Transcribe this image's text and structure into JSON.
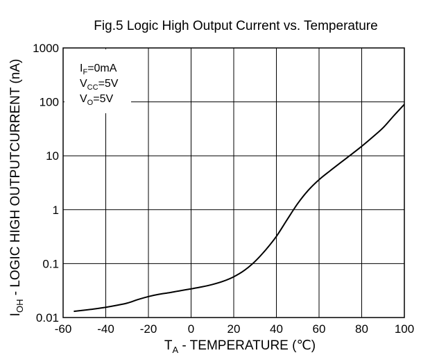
{
  "chart_data": {
    "type": "line",
    "title": "Fig.5 Logic High Output Current vs. Temperature",
    "xlabel": {
      "main": "T",
      "sub": "A",
      "rest": " - TEMPERATURE (℃)"
    },
    "ylabel": {
      "main": "I",
      "sub": "OH",
      "rest": " - LOGIC HIGH OUTPUTCURRENT (nA)"
    },
    "xlim": [
      -60,
      100
    ],
    "ylim": [
      0.01,
      1000
    ],
    "yscale": "log",
    "grid": true,
    "x_ticks": [
      "-60",
      "-40",
      "-20",
      "0",
      "20",
      "40",
      "60",
      "80",
      "100"
    ],
    "y_ticks": [
      "0.01",
      "0.1",
      "1",
      "10",
      "100",
      "1000"
    ],
    "conditions": [
      {
        "main": "I",
        "sub": "F",
        "rest": "=0mA"
      },
      {
        "main": "V",
        "sub": "CC",
        "rest": "=5V"
      },
      {
        "main": "V",
        "sub": "O",
        "rest": "=5V"
      }
    ],
    "series": [
      {
        "x": [
          -55,
          -50,
          -45,
          -40,
          -35,
          -30,
          -25,
          -20,
          -15,
          -10,
          -5,
          0,
          5,
          10,
          15,
          20,
          25,
          30,
          35,
          40,
          45,
          50,
          55,
          60,
          65,
          70,
          75,
          80,
          85,
          90,
          95,
          100
        ],
        "y": [
          0.013,
          0.0137,
          0.0145,
          0.0155,
          0.0168,
          0.0185,
          0.0215,
          0.0245,
          0.027,
          0.029,
          0.0315,
          0.034,
          0.037,
          0.041,
          0.047,
          0.057,
          0.075,
          0.11,
          0.18,
          0.32,
          0.65,
          1.3,
          2.3,
          3.6,
          5.2,
          7.4,
          10.5,
          15,
          22,
          33,
          55,
          90
        ]
      }
    ]
  }
}
